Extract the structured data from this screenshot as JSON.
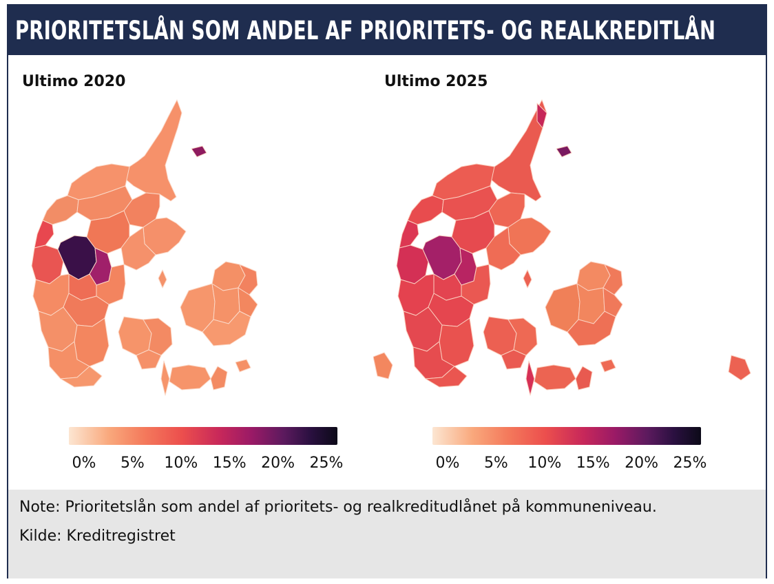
{
  "title": "PRIORITETSLÅN SOM ANDEL AF PRIORITETS- OG REALKREDITLÅN",
  "maps": [
    {
      "title": "Ultimo 2020",
      "legend_ticks": [
        "0%",
        "5%",
        "10%",
        "15%",
        "20%",
        "25%"
      ]
    },
    {
      "title": "Ultimo 2025",
      "legend_ticks": [
        "0%",
        "5%",
        "10%",
        "15%",
        "20%",
        "25%"
      ]
    }
  ],
  "legend": {
    "min": 0,
    "max": 25,
    "unit": "%",
    "colors": [
      "#fce6d2",
      "#f9a87c",
      "#f47a5c",
      "#ec4f4d",
      "#c8285a",
      "#9a1a66",
      "#5c1a5e",
      "#2a1040",
      "#0c0a18"
    ]
  },
  "note": "Note: Prioritetslån som andel af prioritets- og realkreditudlånet på kommuneniveau.",
  "source": "Kilde: Kreditregistret"
}
